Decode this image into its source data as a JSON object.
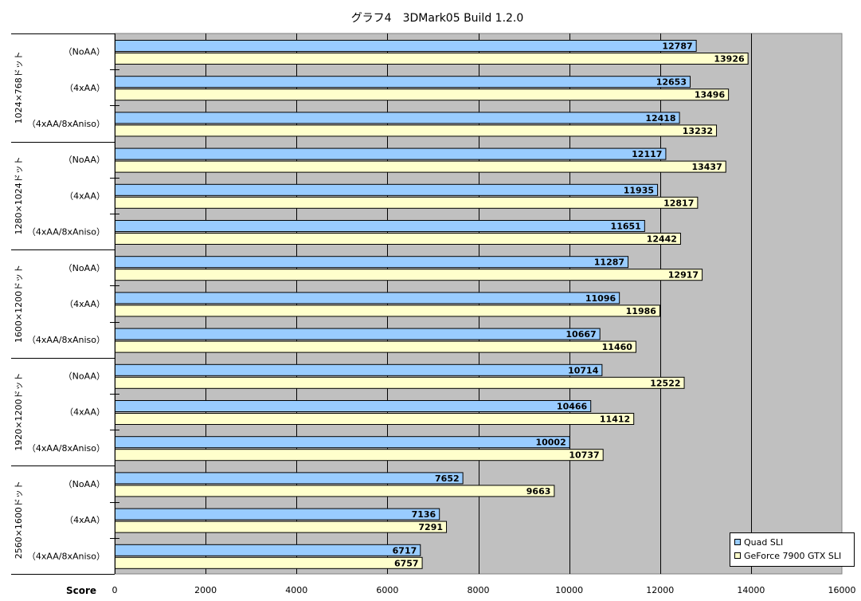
{
  "chart_data": {
    "type": "bar",
    "orientation": "horizontal",
    "title": "グラフ4　3DMark05 Build 1.2.0",
    "xlabel": "Score",
    "xlim": [
      0,
      16000
    ],
    "xticks": [
      0,
      2000,
      4000,
      6000,
      8000,
      10000,
      12000,
      14000,
      16000
    ],
    "grid": true,
    "legend_position": "bottom-right",
    "groups": [
      {
        "label": "1024×768ドット",
        "categories": [
          "（NoAA）",
          "（4xAA）",
          "（4xAA/8xAniso）"
        ]
      },
      {
        "label": "1280×1024ドット",
        "categories": [
          "（NoAA）",
          "（4xAA）",
          "（4xAA/8xAniso）"
        ]
      },
      {
        "label": "1600×1200ドット",
        "categories": [
          "（NoAA）",
          "（4xAA）",
          "（4xAA/8xAniso）"
        ]
      },
      {
        "label": "1920×1200ドット",
        "categories": [
          "（NoAA）",
          "（4xAA）",
          "（4xAA/8xAniso）"
        ]
      },
      {
        "label": "2560×1600ドット",
        "categories": [
          "（NoAA）",
          "（4xAA）",
          "（4xAA/8xAniso）"
        ]
      }
    ],
    "series": [
      {
        "name": "Quad SLI",
        "color": "#99ccff",
        "values": [
          12787,
          12653,
          12418,
          12117,
          11935,
          11651,
          11287,
          11096,
          10667,
          10714,
          10466,
          10002,
          7652,
          7136,
          6717
        ]
      },
      {
        "name": "GeForce 7900 GTX SLI",
        "color": "#ffffcc",
        "values": [
          13926,
          13496,
          13232,
          13437,
          12817,
          12442,
          12917,
          11986,
          11460,
          12522,
          11412,
          10737,
          9663,
          7291,
          6757
        ]
      }
    ]
  }
}
